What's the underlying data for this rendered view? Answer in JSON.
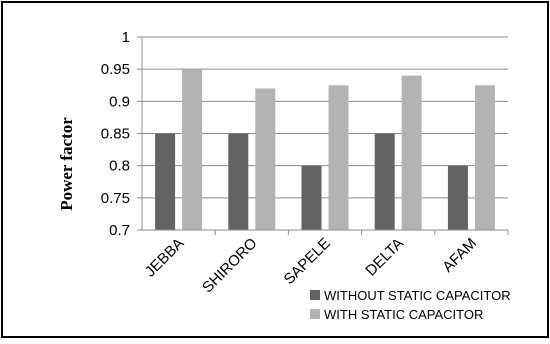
{
  "chart_data": {
    "type": "bar",
    "title": "",
    "xlabel": "",
    "ylabel": "Power  factor",
    "categories": [
      "JEBBA",
      "SHIRORO",
      "SAPELE",
      "DELTA",
      "AFAM"
    ],
    "series": [
      {
        "name": "WITHOUT STATIC CAPACITOR",
        "values": [
          0.85,
          0.85,
          0.8,
          0.85,
          0.8
        ],
        "color": "#636363"
      },
      {
        "name": "WITH STATIC CAPACITOR",
        "values": [
          0.95,
          0.92,
          0.925,
          0.94,
          0.925
        ],
        "color": "#b3b3b3"
      }
    ],
    "ylim": [
      0.7,
      1
    ],
    "yticks": [
      "0.7",
      "0.75",
      "0.8",
      "0.85",
      "0.9",
      "0.95",
      "1"
    ],
    "grid": true,
    "legend_position": "bottom-right"
  }
}
